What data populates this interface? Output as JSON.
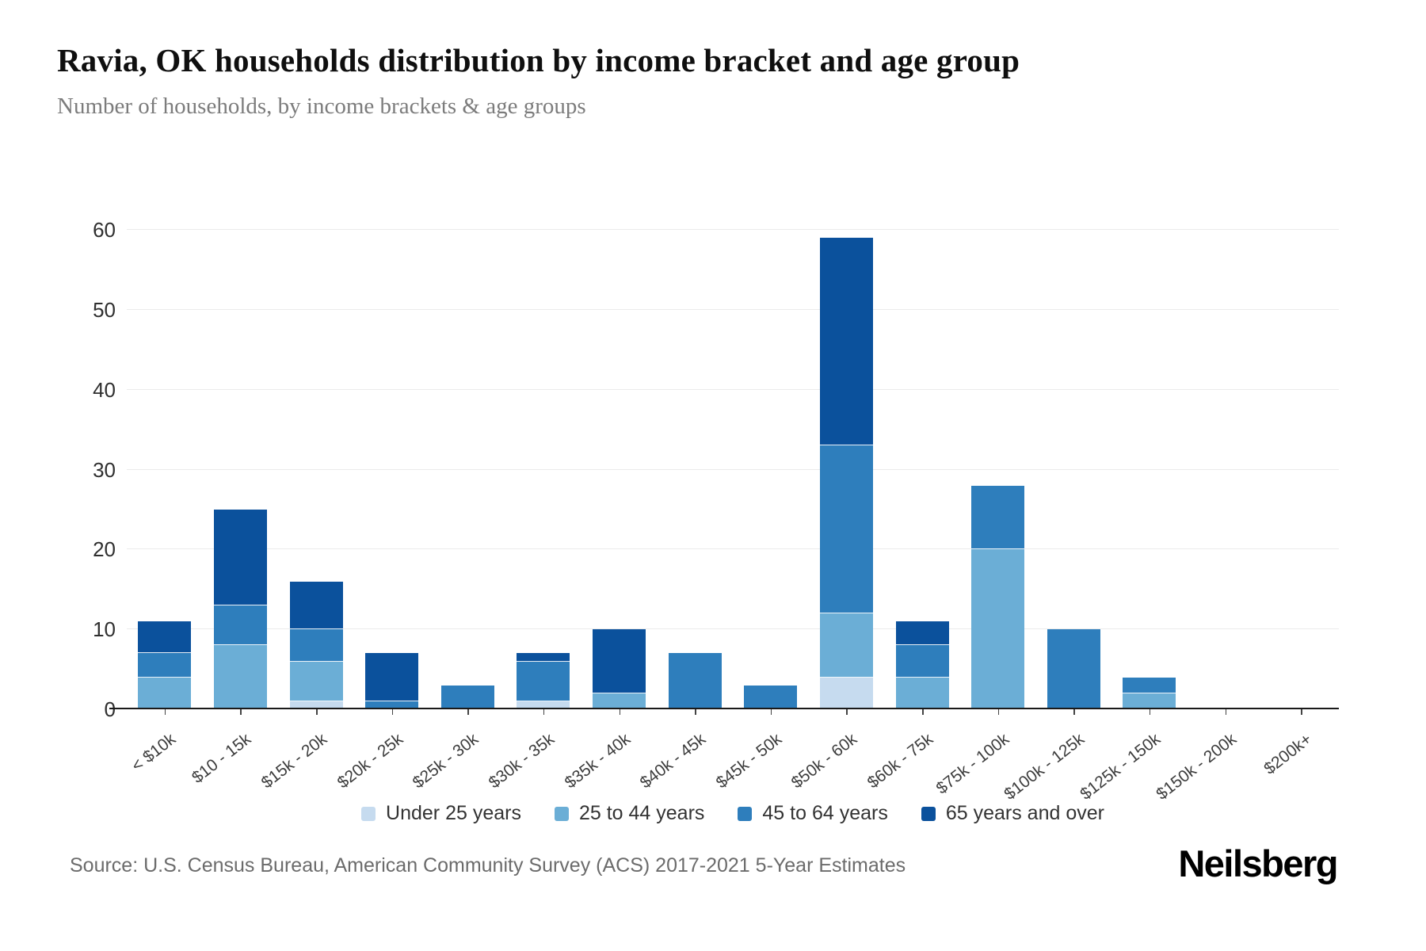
{
  "header": {
    "title": "Ravia, OK households distribution by income bracket and age group",
    "subtitle": "Number of households, by income brackets & age groups"
  },
  "chart_data": {
    "type": "bar",
    "stacked": true,
    "title": "Ravia, OK households distribution by income bracket and age group",
    "subtitle": "Number of households, by income brackets & age groups",
    "xlabel": "",
    "ylabel": "",
    "ylim": [
      0,
      60
    ],
    "yticks": [
      0,
      10,
      20,
      30,
      40,
      50,
      60
    ],
    "grid": "horizontal",
    "legend_position": "bottom",
    "categories": [
      "< $10k",
      "$10 - 15k",
      "$15k - 20k",
      "$20k - 25k",
      "$25k - 30k",
      "$30k - 35k",
      "$35k - 40k",
      "$40k - 45k",
      "$45k - 50k",
      "$50k - 60k",
      "$60k - 75k",
      "$75k - 100k",
      "$100k - 125k",
      "$125k - 150k",
      "$150k - 200k",
      "$200k+"
    ],
    "series": [
      {
        "name": "Under 25 years",
        "color": "#c6dbef",
        "values": [
          0,
          0,
          1,
          0,
          0,
          1,
          0,
          0,
          0,
          4,
          0,
          0,
          0,
          0,
          0,
          0
        ]
      },
      {
        "name": "25 to 44 years",
        "color": "#6baed6",
        "values": [
          4,
          8,
          5,
          0,
          0,
          0,
          2,
          0,
          0,
          8,
          4,
          20,
          0,
          2,
          0,
          0
        ]
      },
      {
        "name": "45 to 64 years",
        "color": "#2e7ebc",
        "values": [
          3,
          5,
          4,
          1,
          3,
          5,
          0,
          7,
          3,
          21,
          4,
          8,
          10,
          2,
          0,
          0
        ]
      },
      {
        "name": "65 years and over",
        "color": "#0b519c",
        "values": [
          4,
          12,
          6,
          6,
          0,
          1,
          8,
          0,
          0,
          26,
          3,
          0,
          0,
          0,
          0,
          0
        ]
      }
    ],
    "totals": [
      11,
      25,
      16,
      7,
      3,
      7,
      10,
      7,
      3,
      59,
      11,
      28,
      10,
      4,
      0,
      0
    ]
  },
  "footer": {
    "source": "Source: U.S. Census Bureau, American Community Survey (ACS) 2017-2021 5-Year Estimates",
    "logo": "Neilsberg"
  }
}
